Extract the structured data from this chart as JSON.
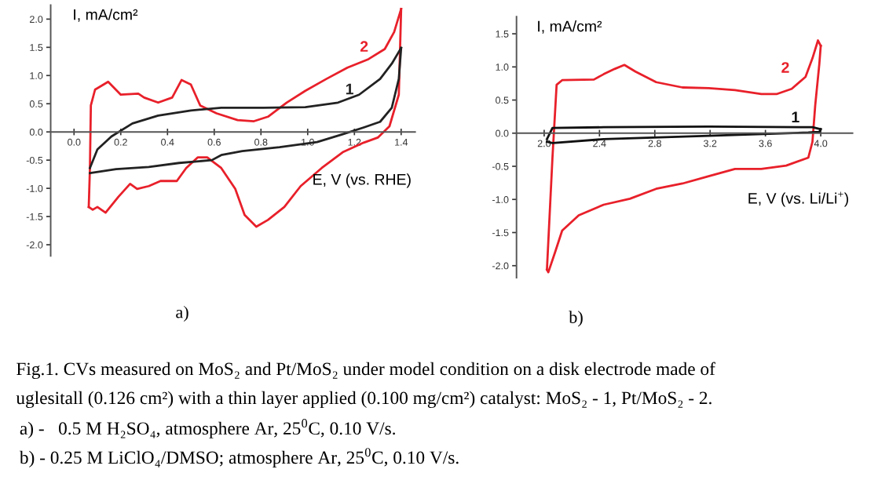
{
  "chart_data": [
    {
      "type": "line",
      "xlabel": "E, V (vs. RHE)",
      "ylabel": "I, mA/cm²",
      "xlim": [
        -0.1,
        1.46
      ],
      "ylim": [
        -2.2,
        2.25
      ],
      "xticks": [
        {
          "value": 0,
          "label": "0.0"
        },
        0.2,
        0.4,
        0.6,
        0.8,
        {
          "value": 1,
          "label": "1.0"
        },
        1.2,
        1.4
      ],
      "yticks": [
        {
          "value": -2,
          "label": "-2.0"
        },
        -1.5,
        {
          "value": -1,
          "label": "-1.0"
        },
        -0.5,
        {
          "value": 0,
          "label": "0.0"
        },
        0.5,
        {
          "value": 1,
          "label": "1.0"
        },
        1.5,
        {
          "value": 2,
          "label": "2.0"
        }
      ],
      "grid": false,
      "legend": false,
      "marker": "none",
      "line_style": "solid",
      "series": [
        {
          "name": "2",
          "color": "#e8202a",
          "x": [
            0.063,
            0.068,
            0.072,
            0.09,
            0.146,
            0.2,
            0.275,
            0.3,
            0.36,
            0.42,
            0.46,
            0.5,
            0.54,
            0.61,
            0.7,
            0.77,
            0.83,
            0.91,
            0.99,
            1.08,
            1.17,
            1.26,
            1.33,
            1.37,
            1.4
          ],
          "values": [
            -1.33,
            -0.64,
            0.47,
            0.75,
            0.89,
            0.66,
            0.68,
            0.61,
            0.52,
            0.61,
            0.92,
            0.84,
            0.47,
            0.33,
            0.21,
            0.19,
            0.27,
            0.52,
            0.73,
            0.94,
            1.14,
            1.29,
            1.47,
            1.77,
            2.18
          ]
        },
        {
          "color": "#e8202a",
          "x": [
            1.4,
            1.39,
            1.35,
            1.3,
            1.24,
            1.15,
            1.06,
            0.97,
            0.9,
            0.83,
            0.78,
            0.73,
            0.69,
            0.63,
            0.57,
            0.53,
            0.48,
            0.44,
            0.37,
            0.32,
            0.27,
            0.24,
            0.19,
            0.135,
            0.1,
            0.08,
            0.063
          ],
          "values": [
            2.18,
            0.66,
            0.1,
            -0.1,
            -0.19,
            -0.36,
            -0.64,
            -0.96,
            -1.33,
            -1.56,
            -1.68,
            -1.47,
            -1.01,
            -0.64,
            -0.45,
            -0.45,
            -0.64,
            -0.87,
            -0.87,
            -0.96,
            -1.01,
            -0.92,
            -1.15,
            -1.43,
            -1.33,
            -1.38,
            -1.33
          ]
        },
        {
          "name": "1",
          "color": "#222222",
          "x": [
            0.068,
            0.1,
            0.16,
            0.25,
            0.36,
            0.5,
            0.63,
            0.81,
            0.99,
            1.13,
            1.22,
            1.31,
            1.36,
            1.4
          ],
          "values": [
            -0.64,
            -0.31,
            -0.08,
            0.15,
            0.29,
            0.38,
            0.43,
            0.43,
            0.44,
            0.52,
            0.66,
            0.94,
            1.21,
            1.49
          ]
        },
        {
          "color": "#222222",
          "x": [
            1.4,
            1.39,
            1.36,
            1.31,
            1.24,
            1.15,
            1.04,
            0.88,
            0.72,
            0.63,
            0.59,
            0.45,
            0.32,
            0.18,
            0.068
          ],
          "values": [
            1.49,
            0.94,
            0.43,
            0.18,
            0.08,
            -0.04,
            -0.18,
            -0.27,
            -0.34,
            -0.41,
            -0.5,
            -0.55,
            -0.62,
            -0.66,
            -0.73
          ]
        }
      ],
      "annotations": [
        "a)",
        "Fig.1. CVs measured on MoS₂ and Pt/MoS₂ under model condition on a disk electrode made of",
        "uglesitall (0.126 cm²) with a thin layer applied (0.100 mg/cm²) catalyst: MoS₂ - 1, Pt/MoS₂ - 2.",
        "a) -   0.5 M H₂SO₄, atmosphere Ar, 25$^{0}$C, 0.10 V/s.",
        "b) - 0.25 M LiClO₄/DMSO; atmosphere Ar, 25$^{0}$C, 0.10 V/s."
      ]
    },
    {
      "type": "line",
      "xlabel": "E, V (vs. Li/Li$^{+}$)",
      "ylabel": "I, mA/cm²",
      "xlim": [
        1.8,
        4.23
      ],
      "ylim": [
        -2.18,
        1.76
      ],
      "xticks": [
        {
          "value": 2,
          "label": "2.0"
        },
        2.4,
        2.8,
        3.2,
        3.6,
        {
          "value": 4,
          "label": "4.0"
        }
      ],
      "yticks": [
        {
          "value": -2,
          "label": "-2.0"
        },
        -1.5,
        {
          "value": -1,
          "label": "-1.0"
        },
        -0.5,
        {
          "value": 0,
          "label": "0.0"
        },
        0.5,
        {
          "value": 1,
          "label": "1.0"
        },
        1.5
      ],
      "grid": false,
      "legend": false,
      "marker": "none",
      "line_style": "solid",
      "series": [
        {
          "name": "2",
          "color": "#e8202a",
          "x": [
            2.02,
            2.06,
            2.09,
            2.13,
            2.36,
            2.43,
            2.51,
            2.58,
            2.66,
            2.81,
            3.0,
            3.19,
            3.38,
            3.57,
            3.68,
            3.79,
            3.89,
            3.94,
            3.98,
            4.0
          ],
          "values": [
            -2.06,
            -0.37,
            0.73,
            0.8,
            0.81,
            0.89,
            0.97,
            1.03,
            0.93,
            0.77,
            0.69,
            0.68,
            0.65,
            0.59,
            0.59,
            0.67,
            0.85,
            1.13,
            1.4,
            1.32
          ]
        },
        {
          "color": "#e8202a",
          "x": [
            4.0,
            3.99,
            3.96,
            3.94,
            3.91,
            3.75,
            3.57,
            3.38,
            3.19,
            3.0,
            2.81,
            2.62,
            2.43,
            2.25,
            2.13,
            2.08,
            2.03,
            2.02
          ],
          "values": [
            1.32,
            1.05,
            0.42,
            -0.13,
            -0.37,
            -0.49,
            -0.54,
            -0.54,
            -0.65,
            -0.76,
            -0.84,
            -0.99,
            -1.08,
            -1.24,
            -1.47,
            -1.79,
            -2.1,
            -2.06
          ]
        },
        {
          "name": "1",
          "color": "#111111",
          "x": [
            2.02,
            2.06,
            2.43,
            3.19,
            3.94,
            4.0
          ],
          "values": [
            -0.09,
            0.08,
            0.09,
            0.1,
            0.09,
            0.06
          ]
        },
        {
          "color": "#111111",
          "x": [
            4.0,
            3.99,
            3.91,
            3.19,
            2.43,
            2.06,
            2.02
          ],
          "values": [
            0.06,
            0.02,
            0.01,
            -0.04,
            -0.09,
            -0.15,
            -0.13
          ]
        }
      ],
      "annotations": [
        "b)"
      ]
    }
  ]
}
